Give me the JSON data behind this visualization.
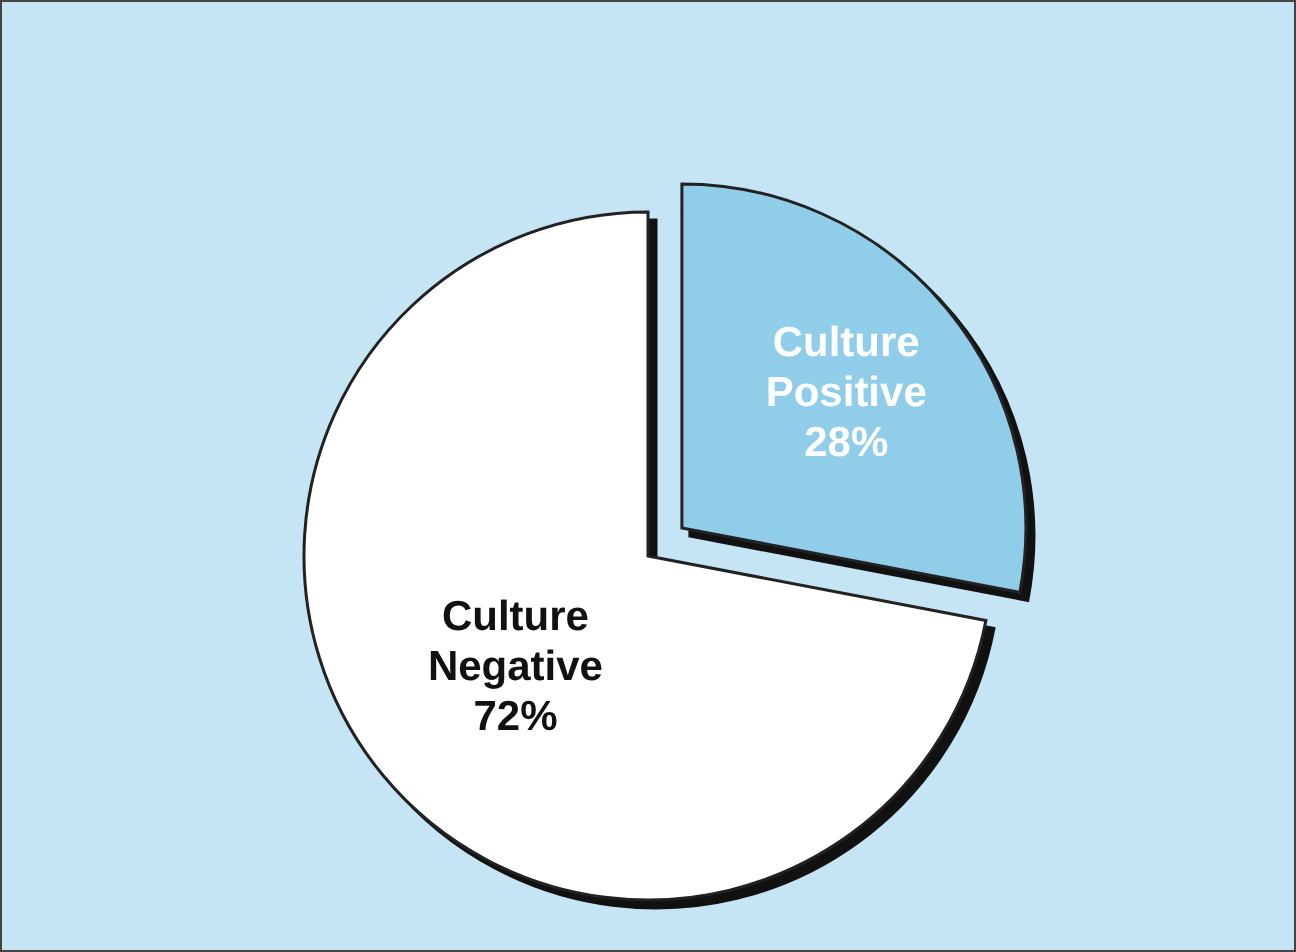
{
  "chart_data": {
    "type": "pie",
    "categories": [
      "Culture Positive",
      "Culture Negative"
    ],
    "values": [
      28,
      72
    ],
    "colors": [
      "#8fcde9",
      "#ffffff"
    ],
    "value_labels": [
      "28%",
      "72%"
    ]
  }
}
